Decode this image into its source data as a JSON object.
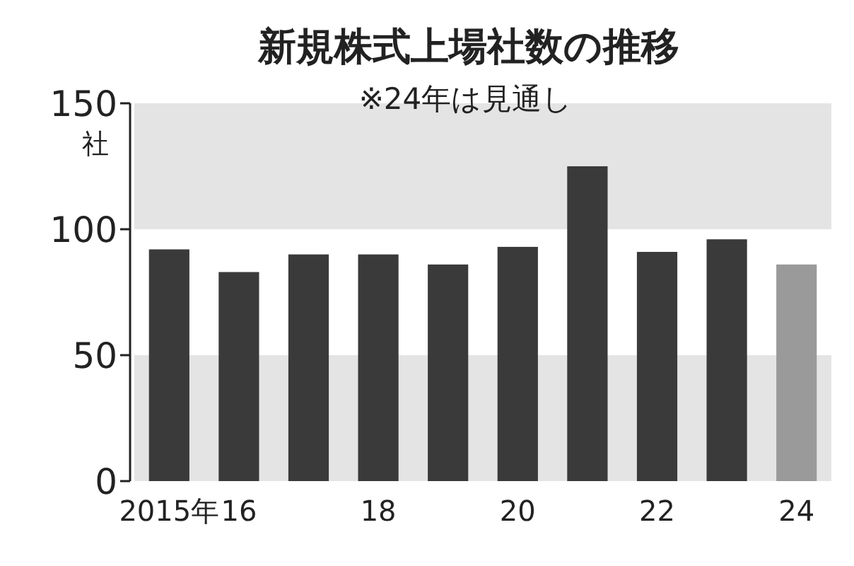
{
  "chart_data": {
    "type": "bar",
    "title": "新規株式上場社数の推移",
    "subtitle": "※24年は見通し",
    "ylabel": "社",
    "categories": [
      "2015年",
      "16",
      null,
      "18",
      null,
      "20",
      null,
      "22",
      null,
      "24"
    ],
    "values": [
      92,
      83,
      90,
      90,
      86,
      93,
      125,
      91,
      96,
      86
    ],
    "colors": [
      "#3a3a3a",
      "#3a3a3a",
      "#3a3a3a",
      "#3a3a3a",
      "#3a3a3a",
      "#3a3a3a",
      "#3a3a3a",
      "#3a3a3a",
      "#3a3a3a",
      "#9a9a9a"
    ],
    "ylim": [
      0,
      150
    ],
    "yticks": [
      0,
      50,
      100,
      150
    ],
    "bands": [
      {
        "axis": "y",
        "from": 0,
        "to": 50,
        "color": "#e4e4e4"
      },
      {
        "axis": "y",
        "from": 100,
        "to": 150,
        "color": "#e4e4e4"
      }
    ]
  }
}
